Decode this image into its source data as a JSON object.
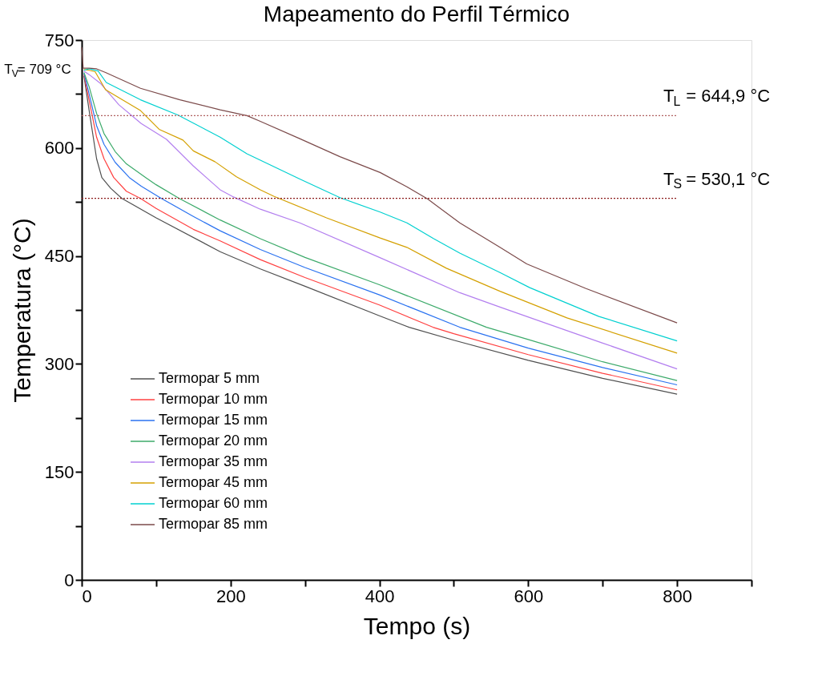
{
  "chart_data": {
    "type": "line",
    "title": "Mapeamento do Perfil Térmico",
    "xlabel": "Tempo (s)",
    "ylabel": "Temperatura (°C)",
    "xlim": [
      0,
      900
    ],
    "ylim": [
      0,
      750
    ],
    "xticks": [
      0,
      {
        "value": 100,
        "label": null
      },
      200,
      {
        "value": 300,
        "label": null
      },
      400,
      {
        "value": 500,
        "label": null
      },
      600,
      {
        "value": 700,
        "label": null
      },
      800,
      {
        "value": 900,
        "label": null
      }
    ],
    "yticks": [
      0,
      {
        "value": 75,
        "label": null
      },
      150,
      {
        "value": 225,
        "label": null
      },
      300,
      {
        "value": 375,
        "label": null
      },
      450,
      {
        "value": 525,
        "label": null
      },
      600,
      {
        "value": 675,
        "label": null
      },
      750
    ],
    "grid": false,
    "legend": "bottom left",
    "line_style": "solid",
    "marker": "none",
    "series": [
      {
        "name": "Termopar 5 mm",
        "color": "#505050",
        "x": [
          3,
          10,
          20,
          27,
          39,
          54,
          100,
          186,
          240,
          300,
          400,
          440,
          500,
          600,
          700,
          800
        ],
        "values": [
          700,
          652,
          585,
          559,
          544,
          530,
          503,
          456,
          432,
          408,
          367,
          351,
          333,
          305,
          280,
          258
        ]
      },
      {
        "name": "Termopar 10 mm",
        "color": "#ff4040",
        "x": [
          3,
          10,
          20,
          30,
          43,
          60,
          79,
          100,
          150,
          186,
          240,
          300,
          400,
          472,
          500,
          600,
          700,
          800
        ],
        "values": [
          702,
          666,
          615,
          585,
          559,
          540,
          530,
          516,
          487,
          471,
          445,
          420,
          382,
          351,
          342,
          313,
          287,
          264
        ]
      },
      {
        "name": "Termopar 15 mm",
        "color": "#2a72f0",
        "x": [
          3,
          10,
          20,
          30,
          45,
          64,
          80,
          107,
          150,
          186,
          240,
          300,
          400,
          508,
          600,
          700,
          800
        ],
        "values": [
          704,
          675,
          631,
          605,
          580,
          559,
          547,
          530,
          505,
          485,
          459,
          434,
          396,
          351,
          322,
          295,
          271
        ]
      },
      {
        "name": "Termopar 20 mm",
        "color": "#3caa6a",
        "x": [
          3,
          10,
          20,
          30,
          45,
          60,
          86,
          100,
          131,
          186,
          240,
          300,
          400,
          544,
          600,
          700,
          800
        ],
        "values": [
          705,
          685,
          648,
          620,
          595,
          578,
          559,
          549,
          530,
          500,
          474,
          448,
          410,
          351,
          334,
          303,
          277
        ]
      },
      {
        "name": "Termopar 35 mm",
        "color": "#b37fef",
        "x": [
          3,
          10,
          25,
          50,
          80,
          114,
          150,
          186,
          204,
          240,
          293,
          400,
          508,
          562,
          650,
          700,
          800
        ],
        "values": [
          707,
          702,
          690,
          660,
          634,
          612,
          575,
          542,
          532,
          515,
          496,
          448,
          399,
          379,
          347,
          329,
          293
        ]
      },
      {
        "name": "Termopar 45 mm",
        "color": "#d4a000",
        "x": [
          3,
          10,
          18,
          32,
          50,
          79,
          104,
          136,
          150,
          179,
          208,
          240,
          258,
          329,
          401,
          437,
          490,
          562,
          652,
          800
        ],
        "values": [
          709,
          708,
          706,
          681,
          670,
          652,
          626,
          611,
          596,
          581,
          560,
          542,
          533,
          503,
          475,
          462,
          433,
          401,
          364,
          315
        ]
      },
      {
        "name": "Termopar 60 mm",
        "color": "#00d0d0",
        "x": [
          3,
          10,
          22,
          33,
          79,
          129,
          186,
          222,
          293,
          347,
          401,
          437,
          473,
          508,
          562,
          602,
          695,
          800
        ],
        "values": [
          708,
          710,
          707,
          691,
          667,
          646,
          615,
          592,
          557,
          531,
          511,
          496,
          474,
          454,
          427,
          406,
          366,
          332
        ]
      },
      {
        "name": "Termopar 85 mm",
        "color": "#7b4a4a",
        "x": [
          0,
          2,
          10,
          20,
          32,
          79,
          132,
          186,
          222,
          240,
          293,
          347,
          401,
          437,
          465,
          508,
          562,
          598,
          677,
          800
        ],
        "values": [
          740,
          711,
          711,
          710,
          705,
          683,
          667,
          653,
          645,
          637,
          613,
          588,
          566,
          546,
          529,
          496,
          462,
          439,
          405,
          357
        ]
      }
    ],
    "ref_lines": [
      {
        "axis": "y",
        "value": 644.9,
        "label": "T$_{L}$ = 644,9 °C",
        "color": "#b06060",
        "line_style": "dotted"
      },
      {
        "axis": "y",
        "value": 530.1,
        "label": "T$_{S}$ = 530,1 °C",
        "color": "#8b1a1a",
        "line_style": "dotted"
      }
    ],
    "annotations": [
      {
        "text": "T$_{V}$= 709 °C",
        "x": 0,
        "y": 709
      }
    ]
  }
}
